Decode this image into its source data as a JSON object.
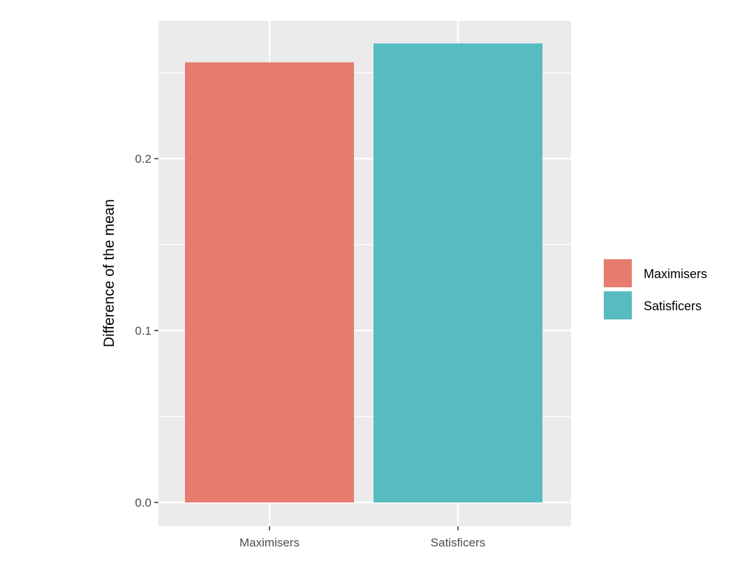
{
  "chart_data": {
    "type": "bar",
    "categories": [
      "Maximisers",
      "Satisficers"
    ],
    "values": [
      0.256,
      0.267
    ],
    "title": "",
    "xlabel": "",
    "ylabel": "Difference of the mean",
    "ylim": [
      0,
      0.28
    ],
    "yticks": [
      {
        "value": 0.0,
        "label": "0.0"
      },
      {
        "value": 0.1,
        "label": "0.1"
      },
      {
        "value": 0.2,
        "label": "0.2"
      }
    ],
    "y_minor_ticks": [
      0.05,
      0.15,
      0.25
    ],
    "grid": true,
    "legend": {
      "position": "right",
      "entries": [
        {
          "label": "Maximisers",
          "color": "#E67B6E"
        },
        {
          "label": "Satisficers",
          "color": "#56BCC2"
        }
      ]
    },
    "colors": [
      "#E67B6E",
      "#56BCC2"
    ],
    "panel_background": "#EBEBEB",
    "gridline_color": "#FFFFFF"
  }
}
